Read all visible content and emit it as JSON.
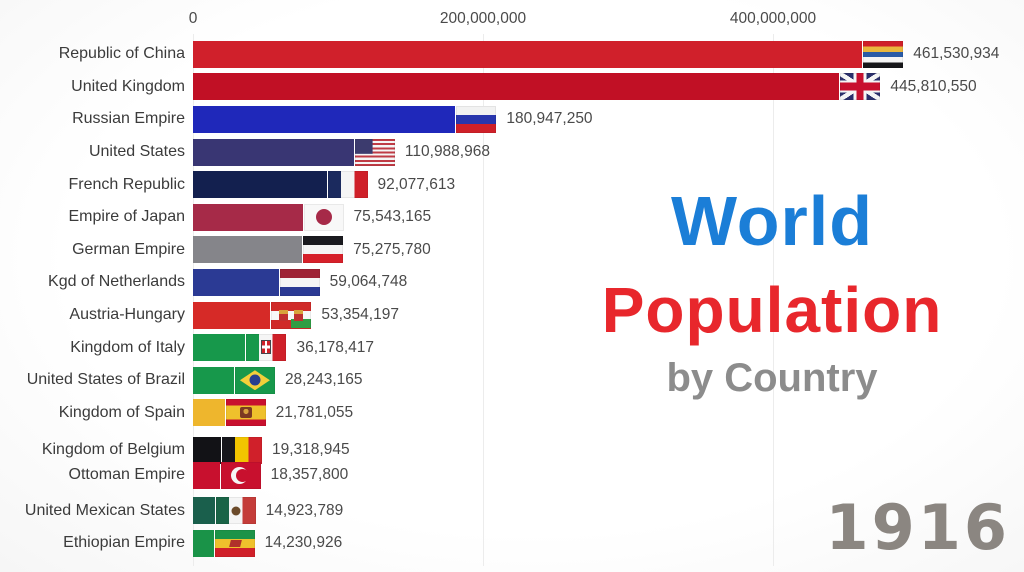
{
  "title": {
    "line1": "World",
    "line2": "Population",
    "line3": "by Country"
  },
  "year": "1916",
  "colors": {
    "title_blue": "#1b7ed7",
    "title_red": "#e8272c",
    "title_gray": "#8c8c8c",
    "year_gray": "#8b8681",
    "label_text": "#3b3b3b",
    "value_text": "#4a4a4a",
    "gridline": "#ececec"
  },
  "chart_data": {
    "type": "bar",
    "orientation": "horizontal",
    "title": "World Population by Country",
    "year_shown": "1916",
    "x_axis": {
      "ticks": [
        {
          "value": 0,
          "label": "0"
        },
        {
          "value": 200000000,
          "label": "200,000,000"
        },
        {
          "value": 400000000,
          "label": "400,000,000"
        }
      ],
      "range": [
        0,
        575000000
      ],
      "grid": true
    },
    "categories": [
      "Republic of China",
      "United Kingdom",
      "Russian Empire",
      "United States",
      "French Republic",
      "Empire of Japan",
      "German Empire",
      "Kgd of Netherlands",
      "Austria-Hungary",
      "Kingdom of Italy",
      "United States of Brazil",
      "Kingdom of Spain",
      "Kingdom of Belgium",
      "Ottoman Empire",
      "United Mexican States",
      "Ethiopian Empire"
    ],
    "values": [
      461530934,
      445810550,
      180947250,
      110988968,
      92077613,
      75543165,
      75275780,
      59064748,
      53354197,
      36178417,
      28243165,
      21781055,
      19318945,
      18357800,
      14923789,
      14230926
    ],
    "value_labels": [
      "461,530,934",
      "445,810,550",
      "180,947,250",
      "110,988,968",
      "92,077,613",
      "75,543,165",
      "75,275,780",
      "59,064,748",
      "53,354,197",
      "36,178,417",
      "28,243,165",
      "21,781,055",
      "19,318,945",
      "18,357,800",
      "14,923,789",
      "14,230,926"
    ],
    "bar_colors": [
      "#d0202b",
      "#c11025",
      "#1f28ba",
      "#393673",
      "#13204f",
      "#a62a48",
      "#85858a",
      "#2b3a94",
      "#d62a27",
      "#17984b",
      "#17984b",
      "#eeb62d",
      "#121216",
      "#c8102e",
      "#1a5f4c",
      "#1a9348"
    ],
    "flags": [
      "china",
      "uk",
      "russia",
      "usa",
      "france",
      "japan",
      "germany",
      "netherlands",
      "austria-hungary",
      "italy",
      "brazil",
      "spain",
      "belgium",
      "ottoman",
      "mexico",
      "ethiopia"
    ],
    "legend": null
  }
}
